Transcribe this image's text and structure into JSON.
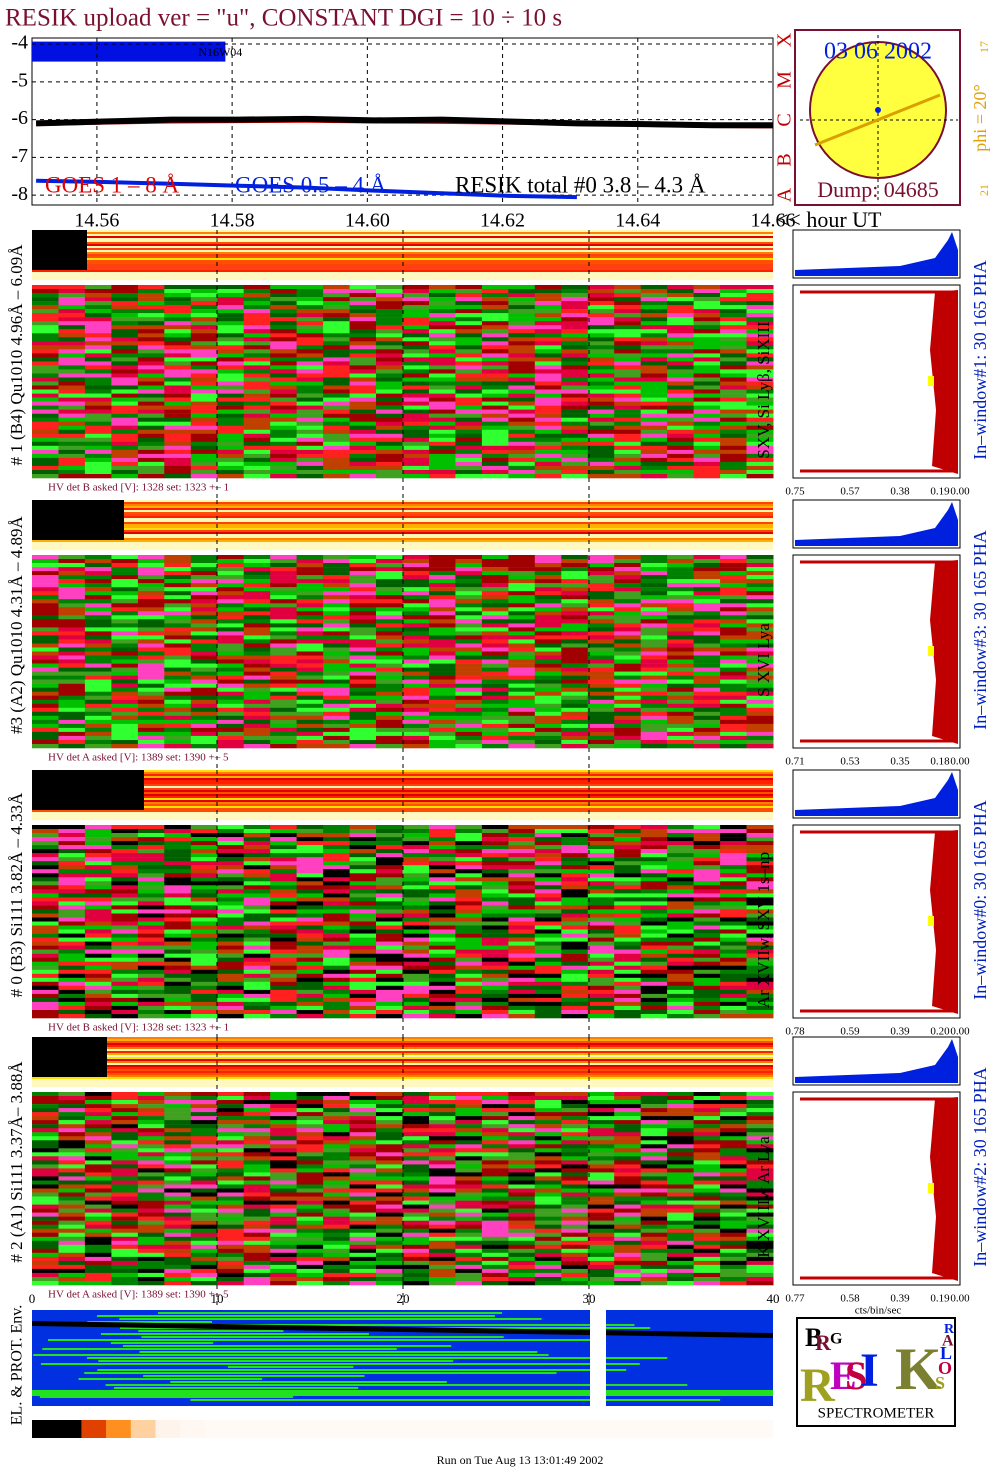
{
  "title": "RESIK upload ver = \"u\", CONSTANT  DGI =  10 ÷  10 s",
  "chart_data": {
    "type": "line",
    "x": [
      14.551,
      14.561,
      14.571,
      14.581,
      14.591,
      14.601,
      14.611,
      14.621,
      14.631,
      14.641,
      14.651,
      14.66
    ],
    "series": [
      {
        "name": "GOES 1 – 8 Å",
        "color": "#e00000",
        "values": [
          -6.12,
          -6.08,
          -6.05,
          -6.04,
          -6.03,
          -6.05,
          -6.06,
          -6.08,
          -6.1,
          -6.14,
          -6.17,
          -6.18
        ]
      },
      {
        "name": "GOES 0.5 – 4 Å",
        "color": "#0020e0",
        "values": [
          -7.62,
          -7.65,
          -7.7,
          -7.75,
          -7.8,
          -7.88,
          -7.95,
          -8.02,
          -8.05,
          null,
          null,
          null
        ]
      },
      {
        "name": "RESIK total #0  3.8 – 4.3 Å",
        "color": "#000000",
        "values": [
          -6.1,
          -6.05,
          -6.0,
          -6.0,
          -5.98,
          -6.02,
          -6.0,
          -6.05,
          -6.1,
          -6.12,
          -6.15,
          -6.15
        ]
      }
    ],
    "xlim": [
      14.5504,
      14.66
    ],
    "ylim": [
      -8.26,
      -3.84
    ],
    "xticks": [
      14.56,
      14.58,
      {
        "value": 14.6,
        "label": "14.60"
      },
      14.62,
      14.64,
      {
        "value": 14.66,
        "label": "14.66"
      }
    ],
    "yticks": [
      -4,
      -5,
      -6,
      -7,
      -8
    ],
    "xlabel": "<< hour UT",
    "grid": true,
    "band_label": "N16W04",
    "class_labels": [
      "X",
      "M",
      "C",
      "B",
      "A"
    ]
  },
  "sun": {
    "date": "03 06 2002",
    "phi": "phi = 20°",
    "dump": "Dump: 04685",
    "top_num": "17",
    "bottom_num": "21"
  },
  "panels": [
    {
      "label": "# 1 (B4) Qu1010 4.96Å – 6.09Å",
      "lines": "SXV, Si Lyβ, SiXIII",
      "window": "In–window#1:   30 165 PHA",
      "hv": "HV det B asked [V]:  1328 set:  1323 +–    1",
      "pha_ticks": [
        "0.75",
        "0.57",
        "0.38",
        "0.19",
        "0.00"
      ]
    },
    {
      "label": "#3 (A2) Qu1010  4.31Å – 4.89Å",
      "lines": "S XVI Lya",
      "window": "In–window#3:   30 165 PHA",
      "hv": "HV det A asked [V]:  1389 set:  1390 +–     5",
      "pha_ticks": [
        "0.71",
        "0.53",
        "0.35",
        "0.18",
        "0.00"
      ]
    },
    {
      "label": "# 0 (B3) Si111  3.82Å – 4.33Å",
      "lines": "Ar XVIIw,  SXV 1s–np",
      "window": "In–window#0:   30 165 PHA",
      "hv": "HV det B asked [V]:  1328 set:  1323 +–    1",
      "pha_ticks": [
        "0.78",
        "0.59",
        "0.39",
        "0.20",
        "0.00"
      ]
    },
    {
      "label": "# 2 (A1) Si111  3.37Å– 3.88Å",
      "lines": "K XVIIIw  Ar Lya",
      "window": "In–window#2:   30 165 PHA",
      "hv": "HV det A asked [V]:  1389 set:  1390 +–    5",
      "pha_ticks": [
        "0.77",
        "0.58",
        "0.39",
        "0.19",
        "0.00"
      ]
    }
  ],
  "bottom_axis": {
    "ticks": [
      "0",
      "10",
      "20",
      "30",
      "40"
    ],
    "pha_unit": "cts/bin/sec"
  },
  "env_label": "EL. & PROT. Env.",
  "logo": {
    "letters": [
      "B",
      "R",
      "G",
      "R",
      "E",
      "S",
      "I",
      "K",
      "S",
      "O",
      "L",
      "A",
      "R"
    ],
    "caption": "SPECTROMETER"
  },
  "footer": "Run on Tue Aug 13 13:01:49 2002"
}
